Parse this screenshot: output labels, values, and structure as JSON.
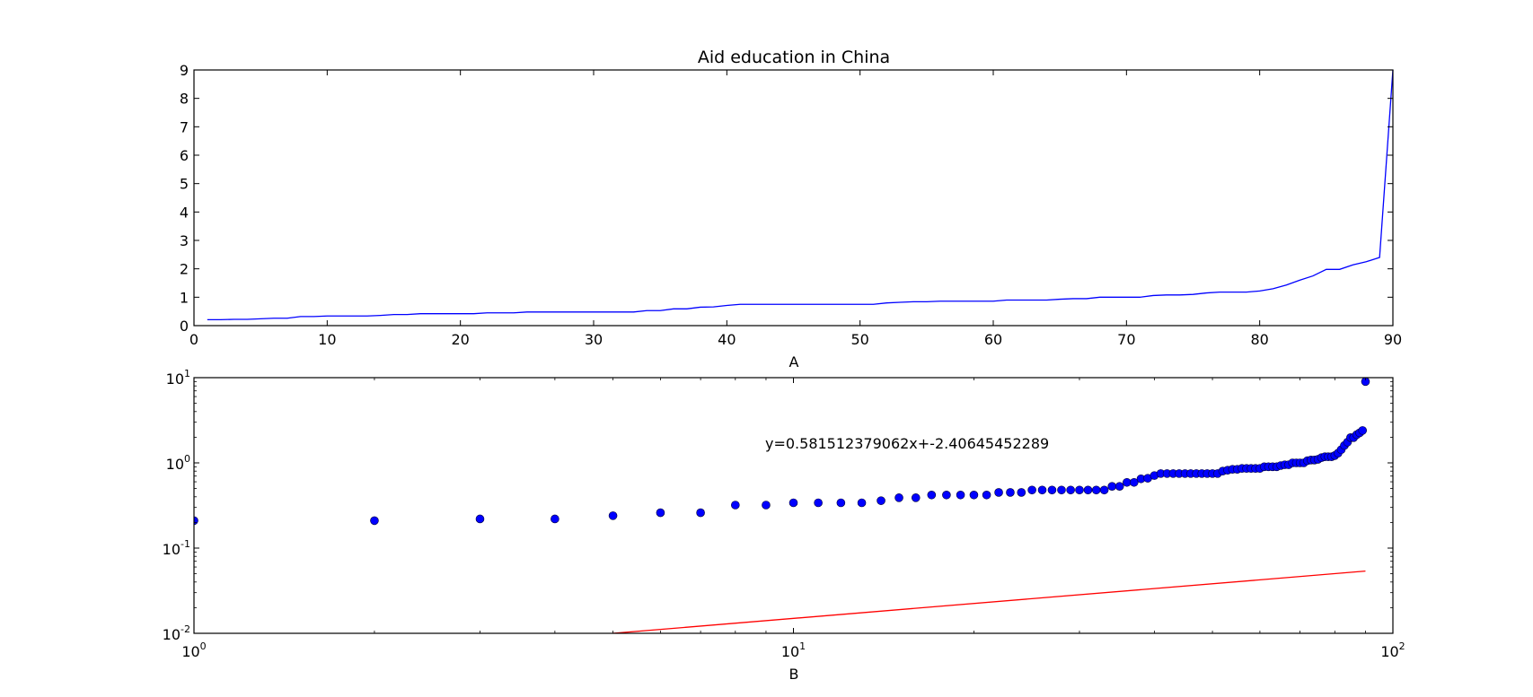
{
  "chart_data": [
    {
      "type": "line",
      "title": "Aid education in China",
      "xlabel": "A",
      "ylabel": "",
      "xlim": [
        0,
        90
      ],
      "ylim": [
        0,
        9
      ],
      "xticks": [
        0,
        10,
        20,
        30,
        40,
        50,
        60,
        70,
        80,
        90
      ],
      "yticks": [
        0,
        1,
        2,
        3,
        4,
        5,
        6,
        7,
        8,
        9
      ],
      "grid": false,
      "series": [
        {
          "color": "#0000ff",
          "x": [
            1,
            2,
            3,
            4,
            5,
            6,
            7,
            8,
            9,
            10,
            11,
            12,
            13,
            14,
            15,
            16,
            17,
            18,
            19,
            20,
            21,
            22,
            23,
            24,
            25,
            26,
            27,
            28,
            29,
            30,
            31,
            32,
            33,
            34,
            35,
            36,
            37,
            38,
            39,
            40,
            41,
            42,
            43,
            44,
            45,
            46,
            47,
            48,
            49,
            50,
            51,
            52,
            53,
            54,
            55,
            56,
            57,
            58,
            59,
            60,
            61,
            62,
            63,
            64,
            65,
            66,
            67,
            68,
            69,
            70,
            71,
            72,
            73,
            74,
            75,
            76,
            77,
            78,
            79,
            80,
            81,
            82,
            83,
            84,
            85,
            86,
            87,
            88,
            89,
            90
          ],
          "y": [
            0.21,
            0.21,
            0.22,
            0.22,
            0.24,
            0.26,
            0.26,
            0.32,
            0.32,
            0.34,
            0.34,
            0.34,
            0.34,
            0.36,
            0.39,
            0.39,
            0.42,
            0.42,
            0.42,
            0.42,
            0.42,
            0.45,
            0.45,
            0.45,
            0.48,
            0.48,
            0.48,
            0.48,
            0.48,
            0.48,
            0.48,
            0.48,
            0.48,
            0.53,
            0.53,
            0.59,
            0.59,
            0.65,
            0.66,
            0.71,
            0.75,
            0.75,
            0.75,
            0.75,
            0.75,
            0.75,
            0.75,
            0.75,
            0.75,
            0.75,
            0.75,
            0.8,
            0.82,
            0.84,
            0.84,
            0.86,
            0.86,
            0.86,
            0.86,
            0.86,
            0.9,
            0.9,
            0.9,
            0.9,
            0.93,
            0.95,
            0.95,
            1.0,
            1.0,
            1.0,
            1.0,
            1.06,
            1.08,
            1.08,
            1.1,
            1.15,
            1.18,
            1.18,
            1.18,
            1.22,
            1.3,
            1.43,
            1.6,
            1.75,
            1.98,
            1.98,
            2.14,
            2.25,
            2.4,
            9.0
          ]
        }
      ]
    },
    {
      "type": "scatter",
      "xlabel": "B",
      "ylabel": "",
      "xscale": "log",
      "yscale": "log",
      "xlim": [
        1,
        100
      ],
      "ylim": [
        0.01,
        10
      ],
      "xticks": [
        {
          "base": "10",
          "exp": "0"
        },
        {
          "base": "10",
          "exp": "1"
        },
        {
          "base": "10",
          "exp": "2"
        }
      ],
      "yticks": [
        {
          "base": "10",
          "exp": "-2"
        },
        {
          "base": "10",
          "exp": "-1"
        },
        {
          "base": "10",
          "exp": "0"
        },
        {
          "base": "10",
          "exp": "1"
        }
      ],
      "grid": false,
      "annotation": "y=0.581512379062x+-2.40645452289",
      "points_color": "#0000ff",
      "fit_line": {
        "color": "#ff0000",
        "slope": 0.581512379062,
        "intercept": -2.40645452289,
        "x_range": [
          1,
          90
        ]
      },
      "series": [
        {
          "x": [
            1,
            2,
            3,
            4,
            5,
            6,
            7,
            8,
            9,
            10,
            11,
            12,
            13,
            14,
            15,
            16,
            17,
            18,
            19,
            20,
            21,
            22,
            23,
            24,
            25,
            26,
            27,
            28,
            29,
            30,
            31,
            32,
            33,
            34,
            35,
            36,
            37,
            38,
            39,
            40,
            41,
            42,
            43,
            44,
            45,
            46,
            47,
            48,
            49,
            50,
            51,
            52,
            53,
            54,
            55,
            56,
            57,
            58,
            59,
            60,
            61,
            62,
            63,
            64,
            65,
            66,
            67,
            68,
            69,
            70,
            71,
            72,
            73,
            74,
            75,
            76,
            77,
            78,
            79,
            80,
            81,
            82,
            83,
            84,
            85,
            86,
            87,
            88,
            89,
            90
          ],
          "y": [
            0.21,
            0.21,
            0.22,
            0.22,
            0.24,
            0.26,
            0.26,
            0.32,
            0.32,
            0.34,
            0.34,
            0.34,
            0.34,
            0.36,
            0.39,
            0.39,
            0.42,
            0.42,
            0.42,
            0.42,
            0.42,
            0.45,
            0.45,
            0.45,
            0.48,
            0.48,
            0.48,
            0.48,
            0.48,
            0.48,
            0.48,
            0.48,
            0.48,
            0.53,
            0.53,
            0.59,
            0.59,
            0.65,
            0.66,
            0.71,
            0.75,
            0.75,
            0.75,
            0.75,
            0.75,
            0.75,
            0.75,
            0.75,
            0.75,
            0.75,
            0.75,
            0.8,
            0.82,
            0.84,
            0.84,
            0.86,
            0.86,
            0.86,
            0.86,
            0.86,
            0.9,
            0.9,
            0.9,
            0.9,
            0.93,
            0.95,
            0.95,
            1.0,
            1.0,
            1.0,
            1.0,
            1.06,
            1.08,
            1.08,
            1.1,
            1.15,
            1.18,
            1.18,
            1.18,
            1.22,
            1.3,
            1.43,
            1.6,
            1.75,
            1.98,
            1.98,
            2.14,
            2.25,
            2.4,
            9.0
          ]
        }
      ]
    }
  ]
}
